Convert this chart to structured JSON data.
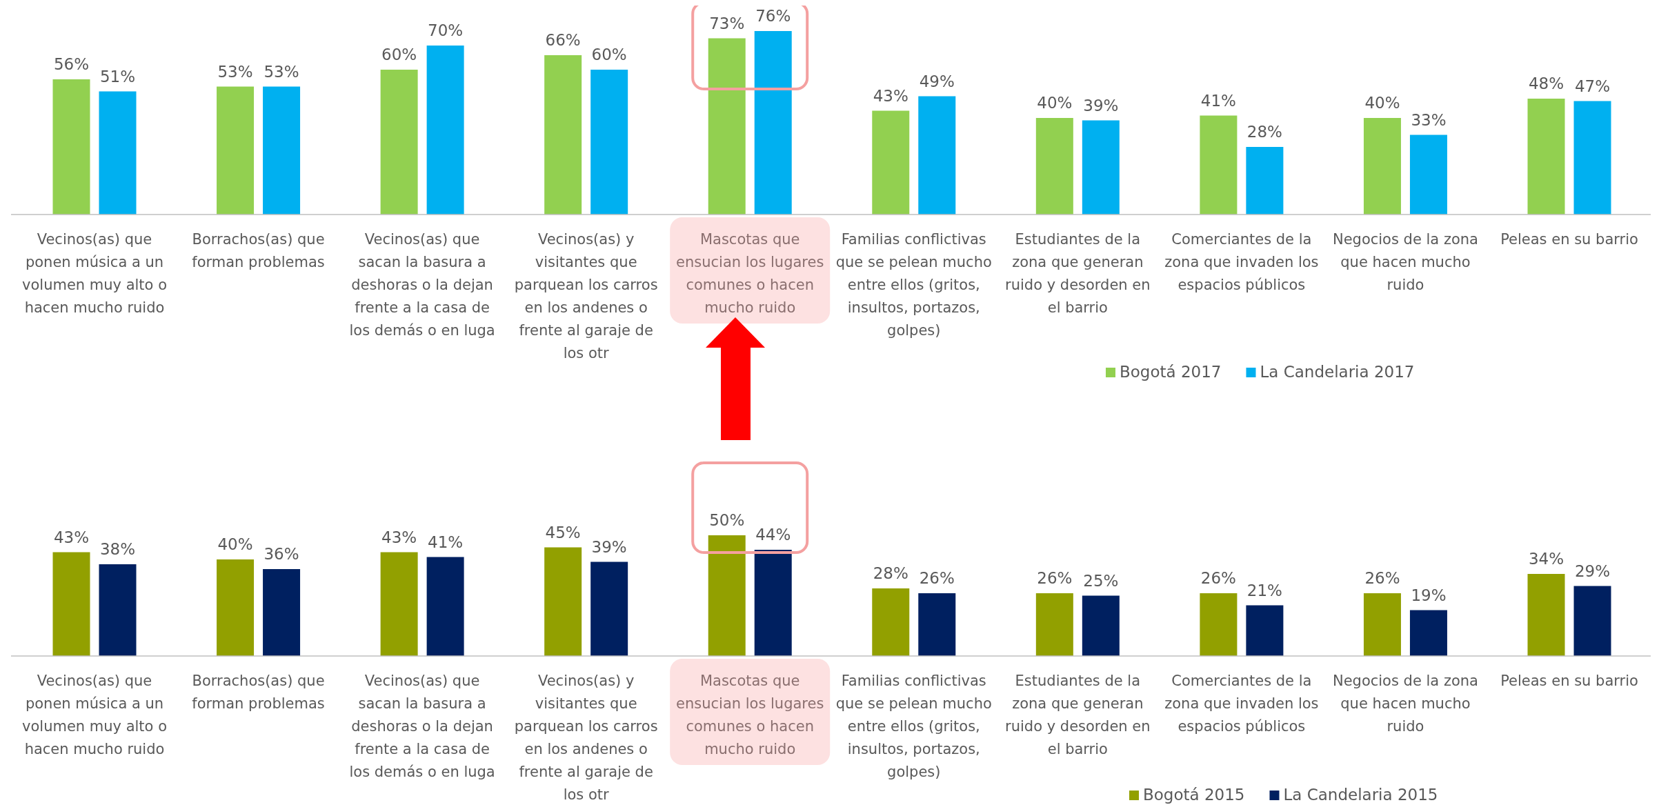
{
  "chart_data": [
    {
      "type": "bar",
      "categories": [
        "Vecinos(as) que ponen música a un volumen muy alto o hacen mucho ruido",
        "Borrachos(as) que forman problemas",
        "Vecinos(as) que sacan la basura a deshoras o la dejan frente a la casa de los demás o en luga",
        "Vecinos(as) y visitantes que parquean los carros en los andenes o frente al garaje de los otr",
        "Mascotas que ensucian los lugares comunes o hacen mucho ruido",
        "Familias conflictivas que se pelean mucho entre ellos (gritos, insultos, portazos, golpes)",
        "Estudiantes de la zona que generan ruido y desorden en el barrio",
        "Comerciantes de la zona que invaden los espacios públicos",
        "Negocios de la zona que hacen mucho ruido",
        "Peleas en su barrio"
      ],
      "series": [
        {
          "name": "Bogotá 2017",
          "color": "#92d050",
          "values": [
            56,
            53,
            60,
            66,
            73,
            43,
            40,
            41,
            40,
            48
          ],
          "value_labels": [
            "56%",
            "53%",
            "60%",
            "66%",
            "73%",
            "43%",
            "40%",
            "41%",
            "40%",
            "48%"
          ]
        },
        {
          "name": "La Candelaria 2017",
          "color": "#00b0f0",
          "values": [
            51,
            53,
            70,
            60,
            76,
            49,
            39,
            28,
            33,
            47
          ],
          "value_labels": [
            "51%",
            "53%",
            "70%",
            "60%",
            "76%",
            "49%",
            "39%",
            "28%",
            "33%",
            "47%"
          ]
        }
      ],
      "legend": "bottom right"
    },
    {
      "type": "bar",
      "categories": [
        "Vecinos(as) que ponen música a un volumen muy alto o hacen mucho ruido",
        "Borrachos(as) que forman problemas",
        "Vecinos(as) que sacan la basura a deshoras o la dejan frente a la casa de los demás o en luga",
        "Vecinos(as) y visitantes que parquean los carros en los andenes o frente al garaje de los otr",
        "Mascotas que ensucian los lugares comunes o hacen mucho ruido",
        "Familias conflictivas que se pelean mucho entre ellos (gritos, insultos, portazos, golpes)",
        "Estudiantes de la zona que generan ruido y desorden en el barrio",
        "Comerciantes de la zona que invaden los espacios públicos",
        "Negocios de la zona que hacen mucho ruido",
        "Peleas en su barrio"
      ],
      "series": [
        {
          "name": "Bogotá 2015",
          "color": "#92a000",
          "values": [
            43,
            40,
            43,
            45,
            50,
            28,
            26,
            26,
            26,
            34
          ],
          "value_labels": [
            "43%",
            "40%",
            "43%",
            "45%",
            "50%",
            "28%",
            "26%",
            "26%",
            "26%",
            "34%"
          ]
        },
        {
          "name": "La Candelaria 2015",
          "color": "#002060",
          "values": [
            38,
            36,
            41,
            39,
            44,
            26,
            25,
            21,
            19,
            29
          ],
          "value_labels": [
            "38%",
            "36%",
            "41%",
            "39%",
            "44%",
            "26%",
            "25%",
            "21%",
            "19%",
            "29%"
          ]
        }
      ],
      "legend": "bottom right"
    }
  ]
}
